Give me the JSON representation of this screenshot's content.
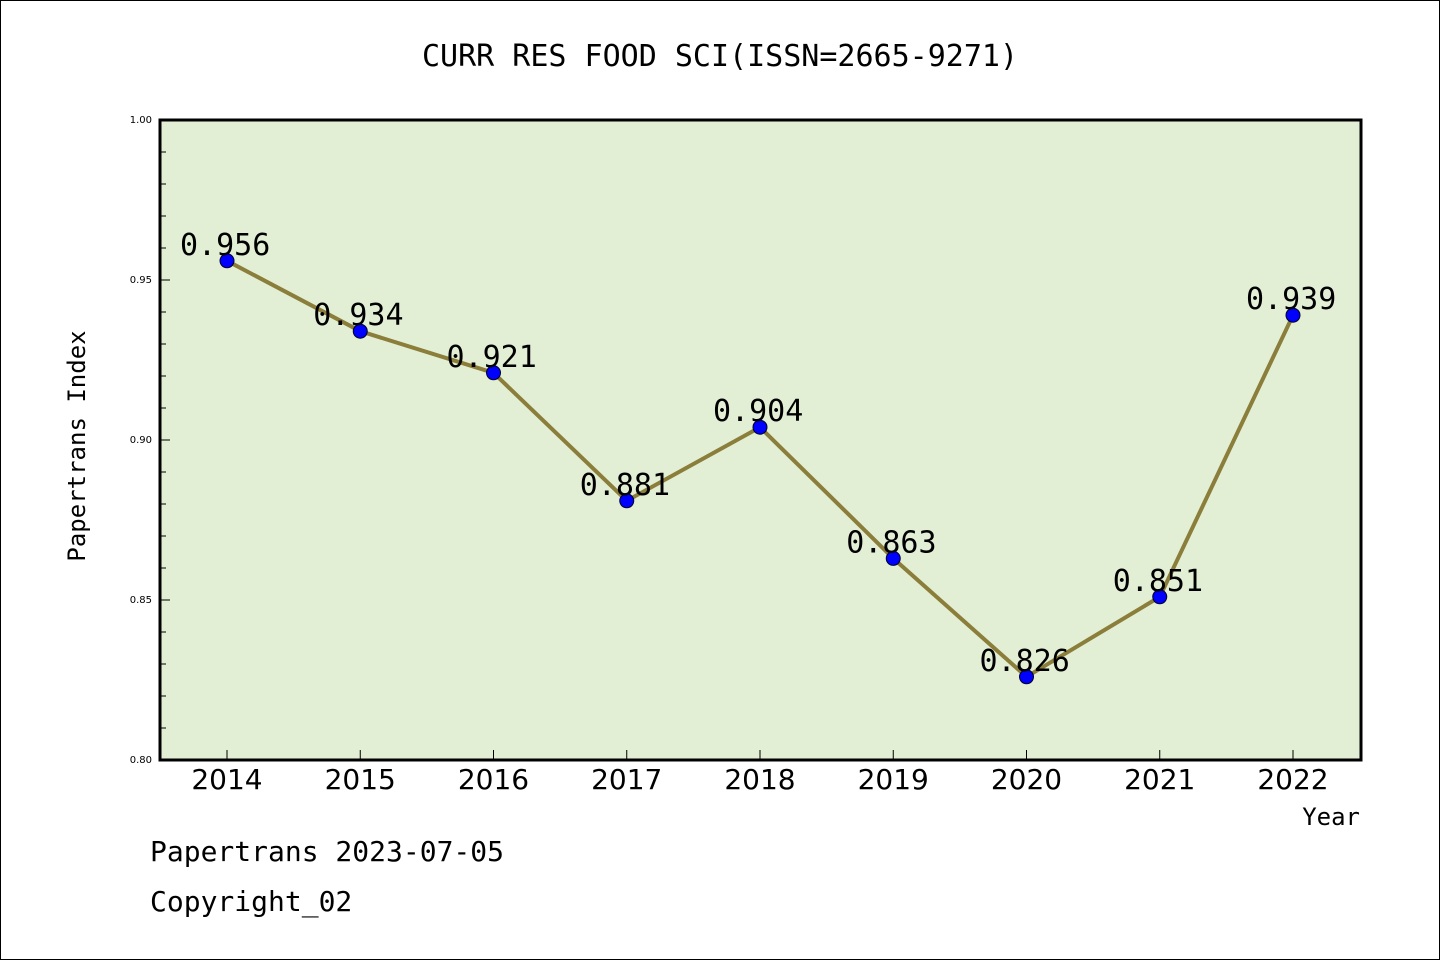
{
  "chart_data": {
    "type": "line",
    "title": "CURR RES FOOD SCI(ISSN=2665-9271)",
    "xlabel": "Year",
    "ylabel": "Papertrans Index",
    "categories": [
      "2014",
      "2015",
      "2016",
      "2017",
      "2018",
      "2019",
      "2020",
      "2021",
      "2022"
    ],
    "values": [
      0.956,
      0.934,
      0.921,
      0.881,
      0.904,
      0.863,
      0.826,
      0.851,
      0.939
    ],
    "data_labels": [
      "0.956",
      "0.934",
      "0.921",
      "0.881",
      "0.904",
      "0.863",
      "0.826",
      "0.851",
      "0.939"
    ],
    "ylim": [
      0.8,
      1.0
    ],
    "yticks": [
      "0.80",
      "0.85",
      "0.90",
      "0.95",
      "1.00"
    ],
    "grid": false,
    "colors": {
      "plot_background": "#e2efd5",
      "line": "#8b7d3a",
      "marker": "#0000ff"
    }
  },
  "footer": {
    "date_line": "Papertrans 2023-07-05",
    "copyright": "Copyright_02"
  }
}
